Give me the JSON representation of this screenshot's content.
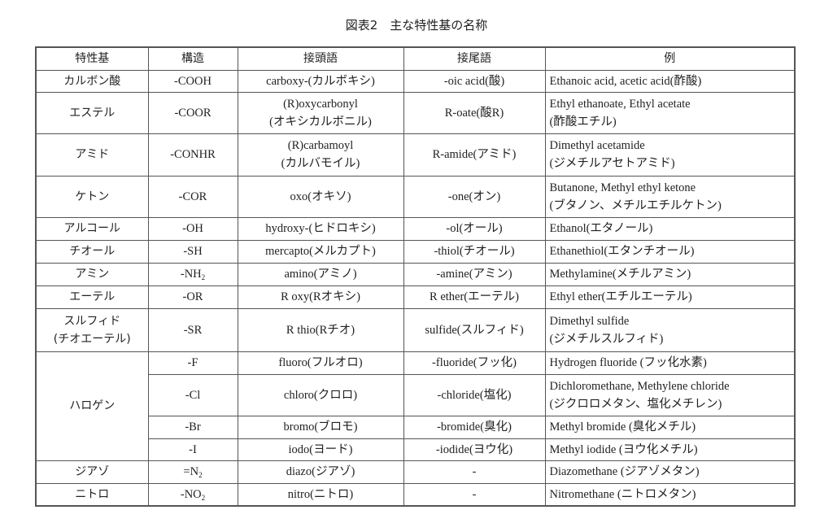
{
  "title": "図表2　主な特性基の名称",
  "headers": [
    "特性基",
    "構造",
    "接頭語",
    "接尾語",
    "例"
  ],
  "rows": [
    {
      "group": "カルボン酸",
      "structure": "-COOH",
      "sub": "",
      "prefix": "carboxy-(カルボキシ)",
      "suffix": "-oic acid(酸)",
      "example": "Ethanoic acid, acetic acid(酢酸)"
    },
    {
      "group": "エステル",
      "structure": "-COOR",
      "sub": "",
      "prefix": "(R)oxycarbonyl\n(オキシカルボニル)",
      "suffix": "R-oate(酸R)",
      "example": "Ethyl ethanoate, Ethyl acetate\n(酢酸エチル)"
    },
    {
      "group": "アミド",
      "structure": "-CONHR",
      "sub": "",
      "prefix": "(R)carbamoyl\n(カルバモイル)",
      "suffix": "R-amide(アミド)",
      "example": "Dimethyl acetamide\n(ジメチルアセトアミド)"
    },
    {
      "group": "ケトン",
      "structure": "-COR",
      "sub": "",
      "prefix": "oxo(オキソ)",
      "suffix": "-one(オン)",
      "example": "Butanone, Methyl ethyl ketone\n(ブタノン、メチルエチルケトン)"
    },
    {
      "group": "アルコール",
      "structure": "-OH",
      "sub": "",
      "prefix": "hydroxy-(ヒドロキシ)",
      "suffix": "-ol(オール)",
      "example": "Ethanol(エタノール)"
    },
    {
      "group": "チオール",
      "structure": "-SH",
      "sub": "",
      "prefix": "mercapto(メルカプト)",
      "suffix": "-thiol(チオール)",
      "example": "Ethanethiol(エタンチオール)"
    },
    {
      "group": "アミン",
      "structure": "-NH",
      "sub": "2",
      "prefix": "amino(アミノ)",
      "suffix": "-amine(アミン)",
      "example": "Methylamine(メチルアミン)"
    },
    {
      "group": "エーテル",
      "structure": "-OR",
      "sub": "",
      "prefix": "R oxy(Rオキシ)",
      "suffix": "R ether(エーテル)",
      "example": "Ethyl ether(エチルエーテル)"
    },
    {
      "group": "スルフィド\n(チオエーテル)",
      "structure": "-SR",
      "sub": "",
      "prefix": "R thio(Rチオ)",
      "suffix": "sulfide(スルフィド)",
      "example": "Dimethyl sulfide\n(ジメチルスルフィド)"
    },
    {
      "group": "ハロゲン",
      "structure": "-F",
      "sub": "",
      "prefix": "fluoro(フルオロ)",
      "suffix": "-fluoride(フッ化)",
      "example": "Hydrogen fluoride (フッ化水素)"
    },
    {
      "group": "",
      "structure": "-Cl",
      "sub": "",
      "prefix": "chloro(クロロ)",
      "suffix": "-chloride(塩化)",
      "example": "Dichloromethane, Methylene chloride\n(ジクロロメタン、塩化メチレン)"
    },
    {
      "group": "",
      "structure": "-Br",
      "sub": "",
      "prefix": "bromo(ブロモ)",
      "suffix": "-bromide(臭化)",
      "example": "Methyl bromide (臭化メチル)"
    },
    {
      "group": "",
      "structure": "-I",
      "sub": "",
      "prefix": "iodo(ヨード)",
      "suffix": "-iodide(ヨウ化)",
      "example": "Methyl iodide (ヨウ化メチル)"
    },
    {
      "group": "ジアゾ",
      "structure": "=N",
      "sub": "2",
      "prefix": "diazo(ジアゾ)",
      "suffix": "-",
      "example": "Diazomethane (ジアゾメタン)"
    },
    {
      "group": "ニトロ",
      "structure": "-NO",
      "sub": "2",
      "prefix": "nitro(ニトロ)",
      "suffix": "-",
      "example": "Nitromethane (ニトロメタン)"
    }
  ]
}
